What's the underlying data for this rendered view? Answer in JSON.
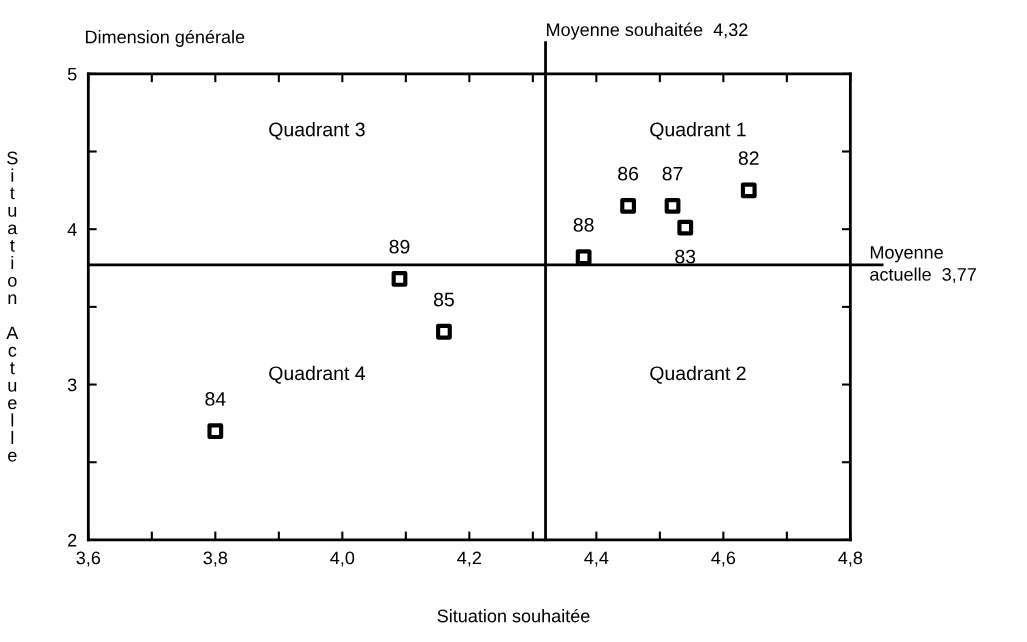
{
  "chart_data": {
    "type": "scatter",
    "title": "Dimension générale",
    "xlabel": "Situation souhaitée",
    "ylabel": "Situation Actuelle",
    "x": [
      4.64,
      4.54,
      3.8,
      4.16,
      4.45,
      4.52,
      4.38,
      4.09
    ],
    "series": [
      {
        "color": "#000000",
        "values": [
          4.25,
          4.01,
          2.7,
          3.34,
          4.15,
          4.15,
          3.82,
          3.68
        ]
      }
    ],
    "marker": "square",
    "grid": false,
    "legend": false,
    "xlim": [
      3.6,
      4.8
    ],
    "ylim": [
      2,
      5
    ],
    "xticks": [
      {
        "value": 3.6,
        "label": "3,6"
      },
      {
        "value": 3.7,
        "label": null
      },
      {
        "value": 3.8,
        "label": "3,8"
      },
      {
        "value": 3.9,
        "label": null
      },
      {
        "value": 4.0,
        "label": "4,0"
      },
      {
        "value": 4.1,
        "label": null
      },
      {
        "value": 4.2,
        "label": "4,2"
      },
      {
        "value": 4.3,
        "label": null
      },
      {
        "value": 4.4,
        "label": "4,4"
      },
      {
        "value": 4.5,
        "label": null
      },
      {
        "value": 4.6,
        "label": "4,6"
      },
      {
        "value": 4.7,
        "label": null
      },
      {
        "value": 4.8,
        "label": "4,8"
      }
    ],
    "yticks": [
      2,
      {
        "value": 2.5,
        "label": null
      },
      3,
      {
        "value": 3.5,
        "label": null
      },
      4,
      {
        "value": 4.5,
        "label": null
      },
      5
    ],
    "ref_lines": [
      {
        "axis": "x",
        "value": 4.32,
        "label": "Moyenne souhaitée  4,32",
        "color": "#000000",
        "line_style": "solid"
      },
      {
        "axis": "y",
        "value": 3.77,
        "label": "Moyenne\nactuelle  3,77",
        "color": "#000000",
        "line_style": "solid"
      }
    ],
    "annotations": [
      {
        "text": "82",
        "x": 4.64,
        "y": 4.25
      },
      {
        "text": "83",
        "x": 4.54,
        "y": 4.01
      },
      {
        "text": "84",
        "x": 3.8,
        "y": 2.7
      },
      {
        "text": "85",
        "x": 4.16,
        "y": 3.34
      },
      {
        "text": "86",
        "x": 4.45,
        "y": 4.15
      },
      {
        "text": "87",
        "x": 4.52,
        "y": 4.15
      },
      {
        "text": "88",
        "x": 4.38,
        "y": 3.82
      },
      {
        "text": "89",
        "x": 4.09,
        "y": 3.68
      },
      "Quadrant 1",
      "Quadrant 2",
      "Quadrant 3",
      "Quadrant 4"
    ]
  }
}
